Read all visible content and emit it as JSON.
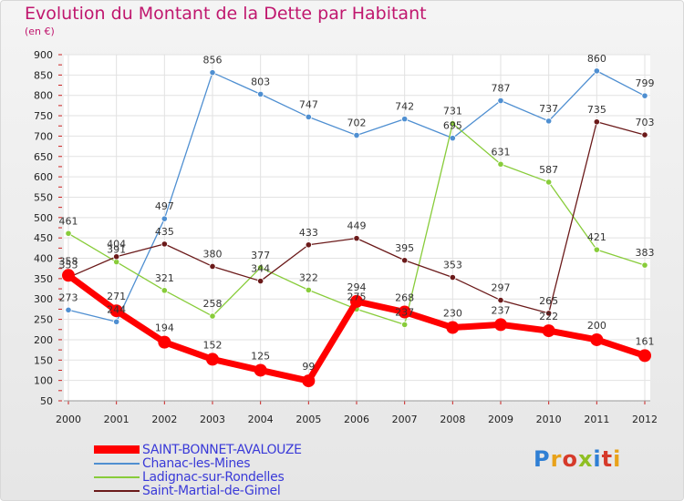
{
  "header": {
    "title": "Evolution du Montant de la Dette par Habitant",
    "unit": "(en €)"
  },
  "logo": {
    "text": "Proxiti",
    "colors": [
      "#2f7fd4",
      "#e8a21a",
      "#d63a2a",
      "#8fbf22",
      "#2f7fd4",
      "#d63a2a",
      "#e8a21a"
    ]
  },
  "chart_data": {
    "type": "line",
    "title": "Evolution du Montant de la Dette par Habitant",
    "ylabel": "(en €)",
    "xlabel": "",
    "x": [
      "2000",
      "2001",
      "2002",
      "2003",
      "2004",
      "2005",
      "2006",
      "2007",
      "2008",
      "2009",
      "2010",
      "2011",
      "2012"
    ],
    "ylim": [
      50,
      900
    ],
    "yticks": [
      50,
      100,
      150,
      200,
      250,
      300,
      350,
      400,
      450,
      500,
      550,
      600,
      650,
      700,
      750,
      800,
      850,
      900
    ],
    "grid": true,
    "legend_position": "bottom-left",
    "series": [
      {
        "name": "SAINT-BONNET-AVALOUZE",
        "color": "#ff0000",
        "thick": true,
        "values": [
          358,
          271,
          194,
          152,
          125,
          99,
          294,
          268,
          230,
          237,
          222,
          200,
          161
        ]
      },
      {
        "name": "Chanac-les-Mines",
        "color": "#4f8fd1",
        "thick": false,
        "values": [
          273,
          244,
          497,
          856,
          803,
          747,
          702,
          742,
          695,
          787,
          737,
          860,
          799
        ]
      },
      {
        "name": "Ladignac-sur-Rondelles",
        "color": "#88cc3a",
        "thick": false,
        "values": [
          461,
          391,
          321,
          258,
          377,
          322,
          275,
          237,
          731,
          631,
          587,
          421,
          383
        ]
      },
      {
        "name": "Saint-Martial-de-Gimel",
        "color": "#6b1a1a",
        "thick": false,
        "values": [
          353,
          404,
          435,
          380,
          344,
          433,
          449,
          395,
          353,
          297,
          265,
          735,
          703
        ]
      }
    ]
  }
}
